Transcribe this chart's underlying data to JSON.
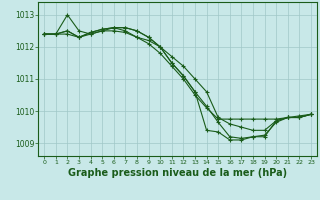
{
  "background_color": "#c8e8e8",
  "line_color": "#1a5c1a",
  "grid_color": "#a0c8c8",
  "xlabel": "Graphe pression niveau de la mer (hPa)",
  "xlabel_fontsize": 7,
  "ylim": [
    1008.6,
    1013.4
  ],
  "xlim": [
    -0.5,
    23.5
  ],
  "yticks": [
    1009,
    1010,
    1011,
    1012,
    1013
  ],
  "xticks": [
    0,
    1,
    2,
    3,
    4,
    5,
    6,
    7,
    8,
    9,
    10,
    11,
    12,
    13,
    14,
    15,
    16,
    17,
    18,
    19,
    20,
    21,
    22,
    23
  ],
  "series": [
    [
      1012.4,
      1012.4,
      1013.0,
      1012.5,
      1012.4,
      1012.5,
      1012.6,
      1012.5,
      1012.3,
      1012.2,
      1012.0,
      1011.7,
      1011.4,
      1011.0,
      1010.6,
      1009.8,
      1009.6,
      1009.5,
      1009.4,
      1009.4,
      1009.7,
      1009.8,
      1009.85,
      1009.9
    ],
    [
      1012.4,
      1012.4,
      1012.5,
      1012.3,
      1012.45,
      1012.55,
      1012.6,
      1012.6,
      1012.5,
      1012.3,
      1012.0,
      1011.5,
      1011.1,
      1010.6,
      1010.15,
      1009.65,
      1009.2,
      1009.15,
      1009.2,
      1009.25,
      1009.65,
      1009.8,
      1009.8,
      1009.9
    ],
    [
      1012.4,
      1012.4,
      1012.5,
      1012.3,
      1012.45,
      1012.55,
      1012.6,
      1012.6,
      1012.5,
      1012.3,
      1012.0,
      1011.5,
      1011.1,
      1010.6,
      1009.4,
      1009.35,
      1009.1,
      1009.1,
      1009.2,
      1009.2,
      1009.7,
      1009.8,
      1009.8,
      1009.9
    ],
    [
      1012.4,
      1012.4,
      1012.4,
      1012.3,
      1012.4,
      1012.5,
      1012.5,
      1012.45,
      1012.3,
      1012.1,
      1011.8,
      1011.4,
      1011.0,
      1010.5,
      1010.1,
      1009.75,
      1009.75,
      1009.75,
      1009.75,
      1009.75,
      1009.75,
      1009.8,
      1009.8,
      1009.9
    ]
  ]
}
